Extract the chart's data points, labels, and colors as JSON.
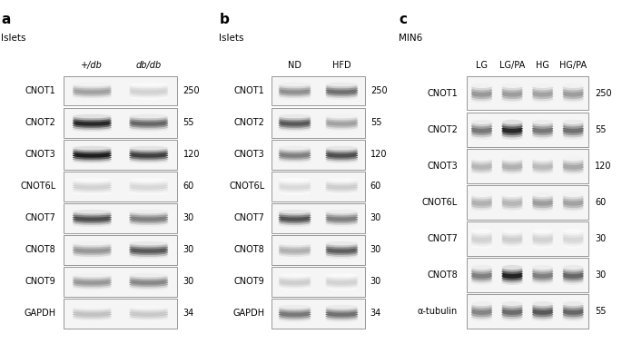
{
  "panel_a": {
    "label": "a",
    "subtitle": "Islets",
    "col_labels": [
      "+/db",
      "db/db"
    ],
    "col_labels_italic": [
      true,
      true
    ],
    "n_cols": 2,
    "rows": [
      {
        "name": "CNOT1",
        "mw": "250",
        "darkness": [
          0.38,
          0.18
        ]
      },
      {
        "name": "CNOT2",
        "mw": "55",
        "darkness": [
          0.88,
          0.62
        ]
      },
      {
        "name": "CNOT3",
        "mw": "120",
        "darkness": [
          0.92,
          0.78
        ]
      },
      {
        "name": "CNOT6L",
        "mw": "60",
        "darkness": [
          0.18,
          0.16
        ]
      },
      {
        "name": "CNOT7",
        "mw": "30",
        "darkness": [
          0.72,
          0.52
        ]
      },
      {
        "name": "CNOT8",
        "mw": "30",
        "darkness": [
          0.42,
          0.68
        ]
      },
      {
        "name": "CNOT9",
        "mw": "30",
        "darkness": [
          0.42,
          0.48
        ]
      },
      {
        "name": "GAPDH",
        "mw": "34",
        "darkness": [
          0.25,
          0.22
        ]
      }
    ]
  },
  "panel_b": {
    "label": "b",
    "subtitle": "Islets",
    "col_labels": [
      "ND",
      "HFD"
    ],
    "col_labels_italic": [
      false,
      false
    ],
    "n_cols": 2,
    "rows": [
      {
        "name": "CNOT1",
        "mw": "250",
        "darkness": [
          0.45,
          0.58
        ]
      },
      {
        "name": "CNOT2",
        "mw": "55",
        "darkness": [
          0.68,
          0.38
        ]
      },
      {
        "name": "CNOT3",
        "mw": "120",
        "darkness": [
          0.52,
          0.72
        ]
      },
      {
        "name": "CNOT6L",
        "mw": "60",
        "darkness": [
          0.15,
          0.2
        ]
      },
      {
        "name": "CNOT7",
        "mw": "30",
        "darkness": [
          0.7,
          0.52
        ]
      },
      {
        "name": "CNOT8",
        "mw": "30",
        "darkness": [
          0.32,
          0.65
        ]
      },
      {
        "name": "CNOT9",
        "mw": "30",
        "darkness": [
          0.2,
          0.18
        ]
      },
      {
        "name": "GAPDH",
        "mw": "34",
        "darkness": [
          0.55,
          0.58
        ]
      }
    ]
  },
  "panel_c": {
    "label": "c",
    "subtitle": "MIN6",
    "col_labels": [
      "LG",
      "LG/PA",
      "HG",
      "HG/PA"
    ],
    "col_labels_italic": [
      false,
      false,
      false,
      false
    ],
    "n_cols": 4,
    "rows": [
      {
        "name": "CNOT1",
        "mw": "250",
        "darkness": [
          0.42,
          0.4,
          0.38,
          0.4
        ]
      },
      {
        "name": "CNOT2",
        "mw": "55",
        "darkness": [
          0.55,
          0.88,
          0.55,
          0.58
        ]
      },
      {
        "name": "CNOT3",
        "mw": "120",
        "darkness": [
          0.3,
          0.32,
          0.28,
          0.35
        ]
      },
      {
        "name": "CNOT6L",
        "mw": "60",
        "darkness": [
          0.32,
          0.3,
          0.4,
          0.38
        ]
      },
      {
        "name": "CNOT7",
        "mw": "30",
        "darkness": [
          0.18,
          0.2,
          0.18,
          0.16
        ]
      },
      {
        "name": "CNOT8",
        "mw": "30",
        "darkness": [
          0.52,
          0.9,
          0.52,
          0.62
        ]
      },
      {
        "name": "α-tubulin",
        "mw": "55",
        "darkness": [
          0.5,
          0.6,
          0.68,
          0.62
        ]
      }
    ]
  },
  "bg_color": "#ffffff",
  "text_color": "#000000",
  "box_bg": "#f5f5f5",
  "box_edge": "#888888"
}
